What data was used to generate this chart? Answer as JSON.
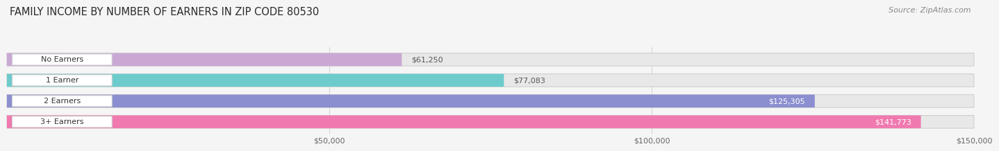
{
  "title": "FAMILY INCOME BY NUMBER OF EARNERS IN ZIP CODE 80530",
  "source": "Source: ZipAtlas.com",
  "categories": [
    "No Earners",
    "1 Earner",
    "2 Earners",
    "3+ Earners"
  ],
  "values": [
    61250,
    77083,
    125305,
    141773
  ],
  "bar_colors": [
    "#c9a8d4",
    "#6dcbcb",
    "#8b8fcf",
    "#f07ab0"
  ],
  "label_colors": [
    "#555555",
    "#555555",
    "#ffffff",
    "#ffffff"
  ],
  "xlim": [
    0,
    150000
  ],
  "xticks": [
    50000,
    100000,
    150000
  ],
  "xtick_labels": [
    "$50,000",
    "$100,000",
    "$150,000"
  ],
  "background_color": "#f5f5f5",
  "bar_background_color": "#e8e8e8",
  "title_fontsize": 10.5,
  "source_fontsize": 8,
  "bar_label_fontsize": 8,
  "category_fontsize": 8,
  "tick_fontsize": 8
}
